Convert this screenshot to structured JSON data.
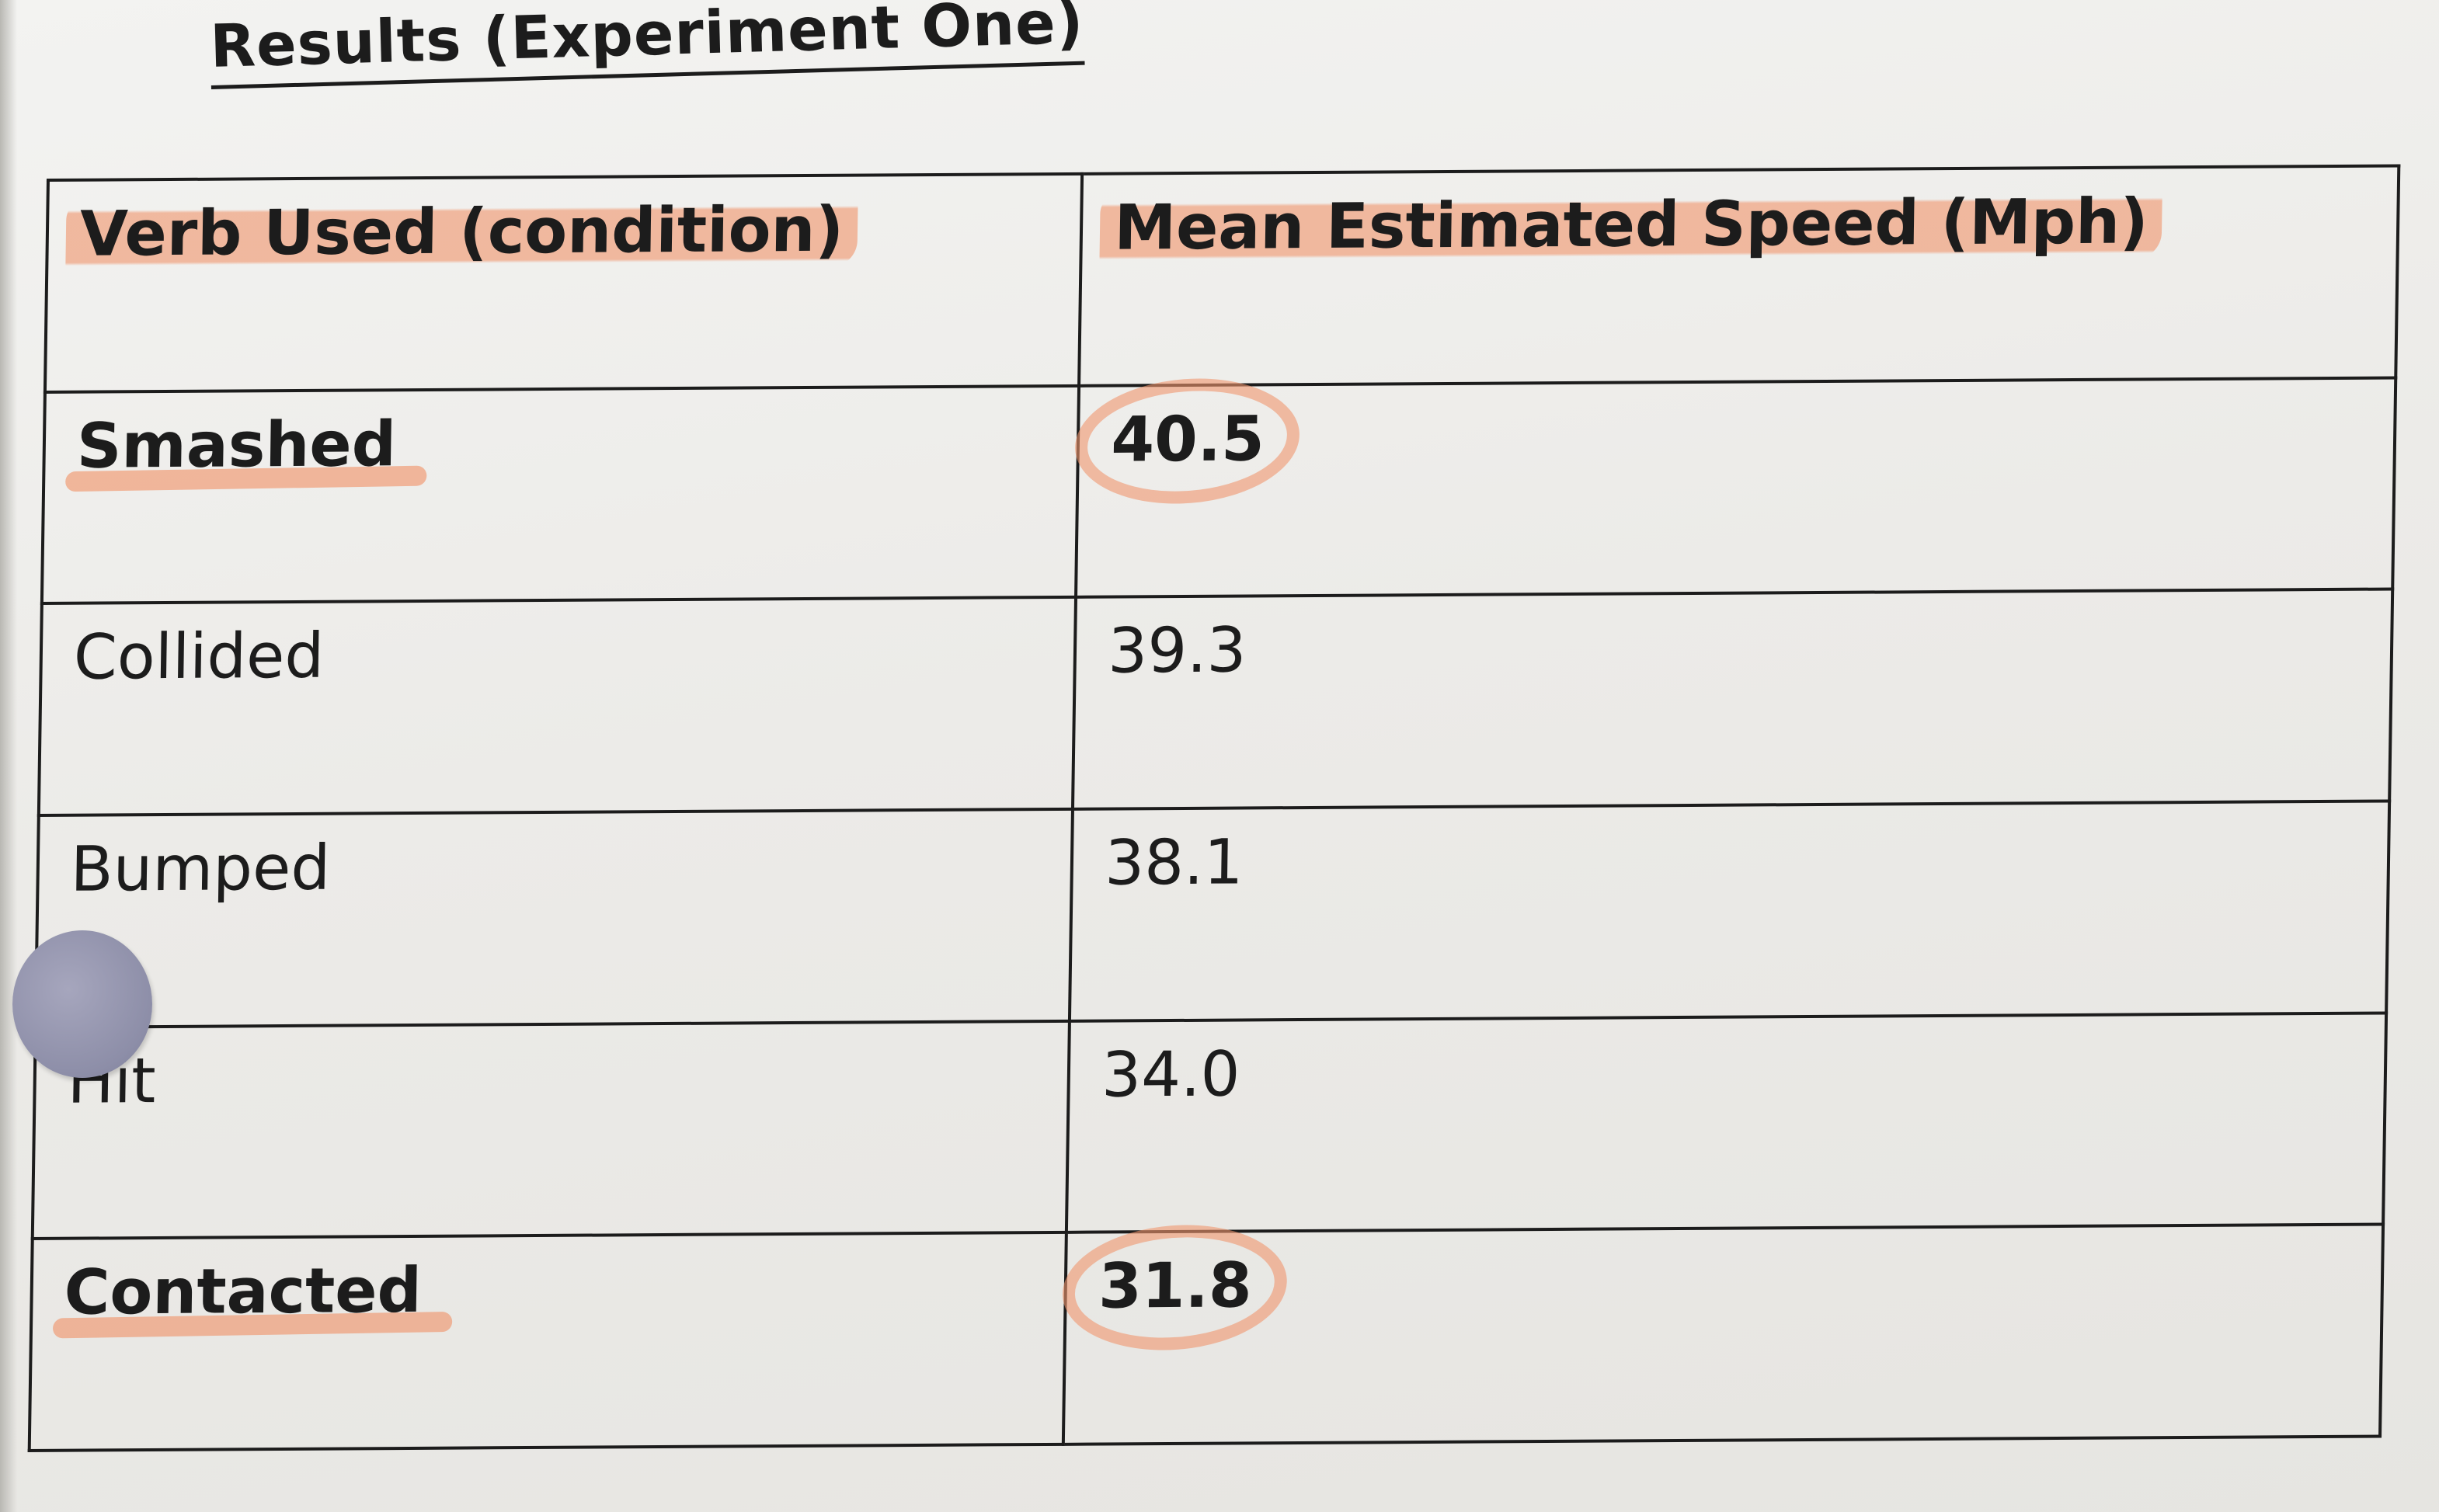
{
  "document": {
    "title": "Results (Experiment One)"
  },
  "table": {
    "headers": [
      "Verb Used (condition)",
      "Mean Estimated Speed (Mph)"
    ],
    "rows": [
      {
        "verb": "Smashed",
        "speed": "40.5"
      },
      {
        "verb": "Collided",
        "speed": "39.3"
      },
      {
        "verb": "Bumped",
        "speed": "38.1"
      },
      {
        "verb": "Hit",
        "speed": "34.0"
      },
      {
        "verb": "Contacted",
        "speed": "31.8"
      }
    ]
  },
  "colors": {
    "highlighter": "#f0966e",
    "ink": "#1c1c1c",
    "paper": "#eeedea",
    "sticker": "#8d8ea8"
  }
}
